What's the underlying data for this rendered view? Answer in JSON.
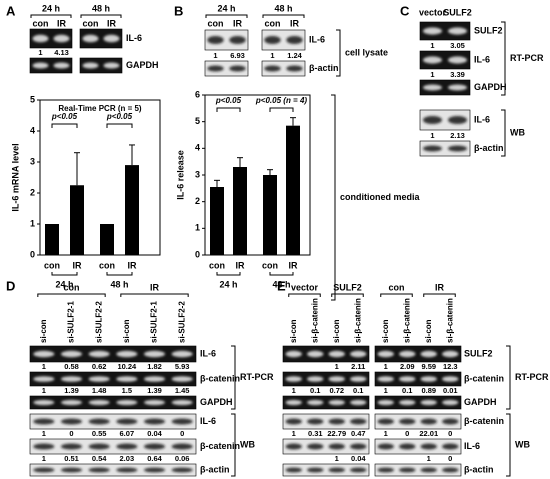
{
  "panel_a": {
    "letter": "A",
    "groups": [
      "24 h",
      "48 h"
    ],
    "lanes": [
      "con",
      "IR",
      "con",
      "IR"
    ],
    "blots": [
      {
        "name": "IL-6",
        "quant": [
          1,
          4.13,
          null,
          null
        ]
      },
      {
        "name": "GAPDH"
      }
    ],
    "chart": {
      "type": "bar",
      "y_label": "IL-6 mRNA level",
      "note": "Real-Time PCR (n = 5)",
      "categories": [
        "con",
        "IR",
        "con",
        "IR"
      ],
      "groups": [
        "24 h",
        "48 h"
      ],
      "values": [
        1,
        2.25,
        1,
        2.9
      ],
      "errors": [
        null,
        1.05,
        null,
        0.65
      ],
      "color": "#000000",
      "ylim": [
        0,
        5
      ],
      "yticks": [
        0,
        1,
        2,
        3,
        4,
        5
      ],
      "significance": [
        "p<0.05",
        "p<0.05"
      ]
    }
  },
  "panel_b": {
    "letter": "B",
    "groups": [
      "24 h",
      "48 h"
    ],
    "lanes": [
      "con",
      "IR",
      "con",
      "IR"
    ],
    "blots": [
      {
        "name": "IL-6",
        "quant": [
          1,
          6.93,
          1,
          1.24
        ]
      },
      {
        "name": "β-actin"
      }
    ],
    "blot_section": "cell lysate",
    "chart": {
      "type": "bar",
      "y_label": "IL-6 release",
      "section": "conditioned media",
      "categories": [
        "con",
        "IR",
        "con",
        "IR"
      ],
      "groups": [
        "24 h",
        "48 h"
      ],
      "values": [
        2.55,
        3.3,
        3.0,
        4.85
      ],
      "errors": [
        0.25,
        0.35,
        0.2,
        0.3
      ],
      "color": "#000000",
      "ylim": [
        0,
        6
      ],
      "yticks": [
        0,
        1,
        2,
        3,
        4,
        5,
        6
      ],
      "significance": [
        "p<0.05",
        "p<0.05 (n = 4)"
      ]
    }
  },
  "panel_c": {
    "letter": "C",
    "lanes": [
      "vector",
      "SULF2"
    ],
    "sections": [
      {
        "name": "RT-PCR",
        "blots": [
          {
            "name": "SULF2",
            "quant": [
              1,
              3.05
            ]
          },
          {
            "name": "IL-6",
            "quant": [
              1,
              3.39
            ]
          },
          {
            "name": "GAPDH"
          }
        ]
      },
      {
        "name": "WB",
        "blots": [
          {
            "name": "IL-6",
            "quant": [
              1,
              2.13
            ]
          },
          {
            "name": "β-actin"
          }
        ]
      }
    ]
  },
  "panel_d": {
    "letter": "D",
    "groups": [
      "con",
      "IR"
    ],
    "lanes": [
      "si-con",
      "si-SULF2-1",
      "si-SULF2-2",
      "si-con",
      "si-SULF2-1",
      "si-SULF2-2"
    ],
    "sections": [
      {
        "name": "RT-PCR",
        "blots": [
          {
            "name": "IL-6",
            "quant": [
              1,
              0.58,
              0.62,
              10.24,
              1.82,
              5.93
            ]
          },
          {
            "name": "β-catenin",
            "quant": [
              1,
              1.39,
              1.48,
              1.5,
              1.39,
              1.45
            ]
          },
          {
            "name": "GAPDH"
          }
        ]
      },
      {
        "name": "WB",
        "blots": [
          {
            "name": "IL-6",
            "quant": [
              1,
              0,
              0.55,
              6.07,
              0.04,
              0
            ]
          },
          {
            "name": "β-catenin",
            "quant": [
              1,
              0.51,
              0.54,
              2.03,
              0.64,
              0.06
            ]
          },
          {
            "name": "β-actin"
          }
        ]
      }
    ]
  },
  "panel_e": {
    "letter": "E",
    "groups": [
      "vector",
      "SULF2",
      "con",
      "IR"
    ],
    "lanes": [
      "si-con",
      "si-β-catenin",
      "si-con",
      "si-β-catenin",
      "si-con",
      "si-β-catenin",
      "si-con",
      "si-β-catenin"
    ],
    "sections": [
      {
        "name": "RT-PCR",
        "blots": [
          {
            "name": "SULF2",
            "quant": [
              null,
              null,
              1,
              2.11,
              1,
              2.09,
              9.59,
              12.3
            ]
          },
          {
            "name": "β-catenin",
            "quant": [
              1,
              0.1,
              0.72,
              0.1,
              1,
              0.1,
              0.89,
              0.01
            ]
          },
          {
            "name": "GAPDH"
          }
        ]
      },
      {
        "name": "WB",
        "blots": [
          {
            "name": "β-catenin",
            "quant": [
              1,
              0.31,
              22.79,
              0.47,
              1,
              0,
              22.01,
              0
            ]
          },
          {
            "name": "IL-6",
            "quant": [
              null,
              null,
              1,
              0.04,
              null,
              null,
              1,
              0
            ]
          },
          {
            "name": "β-actin"
          }
        ]
      }
    ]
  }
}
